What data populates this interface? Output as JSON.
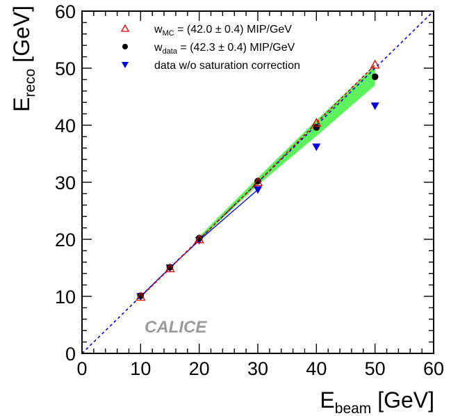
{
  "chart_data": {
    "type": "scatter",
    "xlabel": {
      "main": "E",
      "sub": "beam",
      "unit": " [GeV]"
    },
    "ylabel": {
      "main": "E",
      "sub": "reco",
      "unit": " [GeV]"
    },
    "xlim": [
      0,
      60
    ],
    "ylim": [
      0,
      60
    ],
    "xticks": [
      0,
      10,
      20,
      30,
      40,
      50,
      60
    ],
    "yticks": [
      0,
      10,
      20,
      30,
      40,
      50,
      60
    ],
    "grid": false,
    "legend_position": "top-left",
    "watermark": "CALICE",
    "series": [
      {
        "legend_main": "w",
        "legend_sub": "MC",
        "legend_rest": " = (42.0 ± 0.4) MIP/GeV",
        "marker": "triangle-up-open",
        "color": "#dd0000",
        "x": [
          10,
          15,
          20,
          30,
          40,
          50
        ],
        "y": [
          9.9,
          14.9,
          20.0,
          30.0,
          40.4,
          50.6
        ]
      },
      {
        "legend_main": "w",
        "legend_sub": "data",
        "legend_rest": " = (42.3 ± 0.4) MIP/GeV",
        "marker": "circle-filled",
        "color": "#000000",
        "x": [
          10,
          15,
          20,
          30,
          40,
          50
        ],
        "y": [
          10.1,
          15.1,
          20.2,
          30.2,
          39.6,
          48.5
        ]
      },
      {
        "legend_text": "data w/o saturation correction",
        "marker": "triangle-down-filled",
        "color": "#0000dd",
        "x": [
          10,
          15,
          20,
          30,
          40,
          50
        ],
        "y": [
          10.0,
          15.0,
          19.8,
          28.7,
          36.2,
          43.4
        ]
      }
    ],
    "reference_line": {
      "style": "dashed",
      "color": "#0000dd",
      "x": [
        0,
        60
      ],
      "y": [
        0,
        60
      ]
    },
    "uncertainty_band": {
      "color": "#5ef15e",
      "x": [
        20,
        30,
        40,
        50
      ],
      "y_low": [
        19.8,
        29.5,
        38.1,
        47.0
      ],
      "y_high": [
        20.5,
        30.8,
        40.9,
        50.5
      ]
    },
    "mc_connecting_line": {
      "style": "dashed",
      "color": "#dd0000"
    },
    "nosat_connecting_line": {
      "style": "solid",
      "color": "#0000dd"
    }
  }
}
